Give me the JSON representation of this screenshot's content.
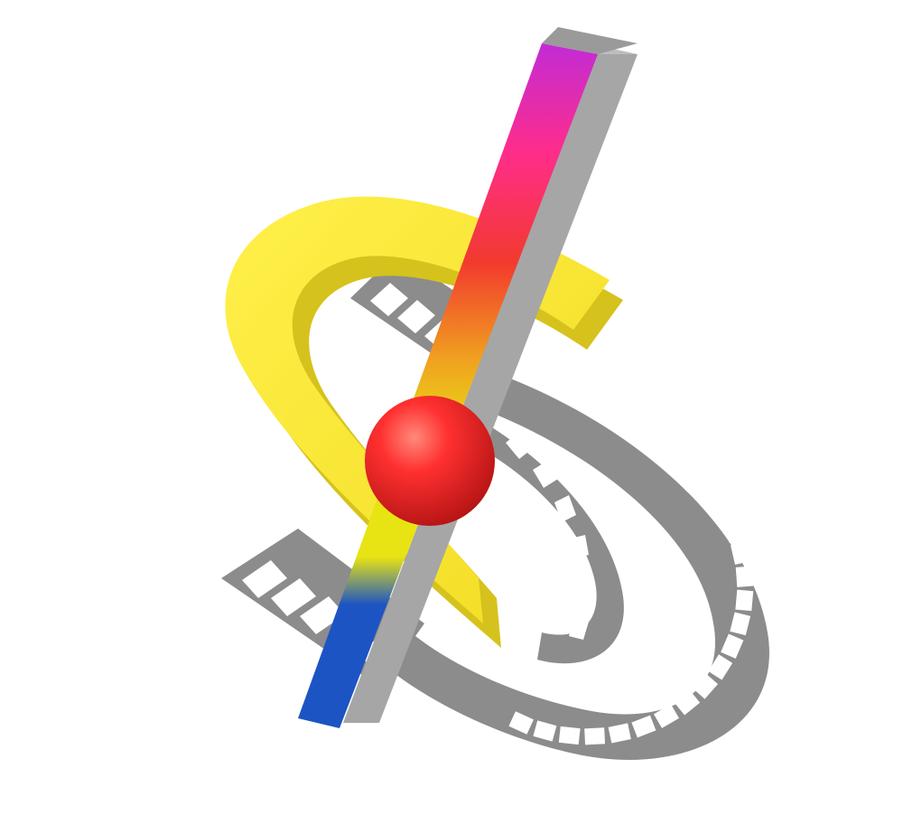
{
  "logo": {
    "icon": "film-reel-emblem-icon",
    "colors": {
      "background": "#ffffff",
      "film_strip": "#8c8c8c",
      "film_strip_dark": "#6e6e6e",
      "boomerang_light": "#ffea3a",
      "boomerang": "#f6e32c",
      "boomerang_shadow": "#d6c21c",
      "bar_top": "#c22bd6",
      "bar_pink": "#ff2d8a",
      "bar_red": "#f23a2e",
      "bar_orange": "#f0a020",
      "bar_yellow": "#e8e313",
      "bar_blue": "#1c54c4",
      "bar_side": "#a6a6a6",
      "ball": "#ee1f1f",
      "ball_highlight": "#ff7a6a",
      "ball_shadow": "#a80f0f"
    }
  }
}
